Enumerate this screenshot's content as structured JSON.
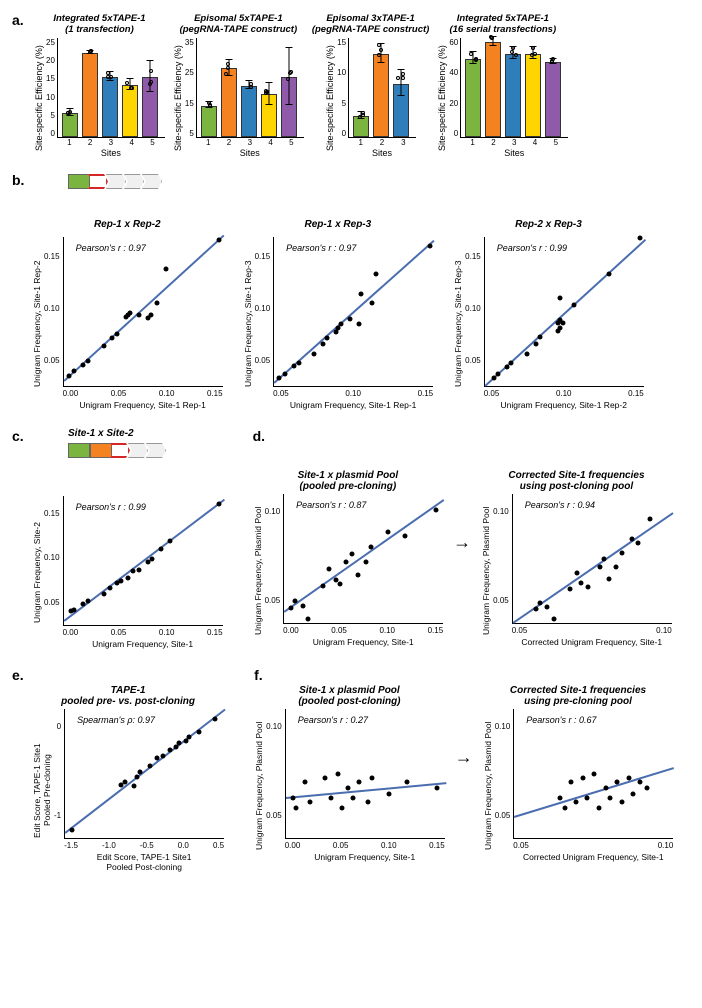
{
  "colors": {
    "green": "#7cb440",
    "orange": "#f58220",
    "blue": "#2e7ebb",
    "yellow": "#ffd500",
    "purple": "#8e5aa9",
    "fit": "#4a6db0",
    "grey": "#e6e6e6",
    "red_outline": "#d62728"
  },
  "panel_a": {
    "label": "a.",
    "y_label": "Site-specific Efficiency (%)",
    "x_label": "Sites",
    "charts": [
      {
        "title": "Integrated 5xTAPE-1\n(1 transfection)",
        "ymax": 25,
        "ytick": 5,
        "width": 130,
        "bars": [
          {
            "v": 6,
            "c": "green",
            "err": 1
          },
          {
            "v": 21,
            "c": "orange",
            "err": 0.6
          },
          {
            "v": 15,
            "c": "blue",
            "err": 1.2
          },
          {
            "v": 13,
            "c": "yellow",
            "err": 1.5
          },
          {
            "v": 15,
            "c": "purple",
            "err": 4
          }
        ]
      },
      {
        "title": "Episomal 5xTAPE-1\n(pegRNA-TAPE construct)",
        "ymax": 35,
        "ytick": 10,
        "width": 130,
        "bars": [
          {
            "v": 11,
            "c": "green",
            "err": 1.2
          },
          {
            "v": 24,
            "c": "orange",
            "err": 3
          },
          {
            "v": 18,
            "c": "blue",
            "err": 1.5
          },
          {
            "v": 15,
            "c": "yellow",
            "err": 4
          },
          {
            "v": 21,
            "c": "purple",
            "err": 10
          }
        ]
      },
      {
        "title": "Episomal 3xTAPE-1\n(pegRNA-TAPE construct)",
        "ymax": 15,
        "ytick": 5,
        "width": 100,
        "bars": [
          {
            "v": 3.2,
            "c": "green",
            "err": 0.6
          },
          {
            "v": 12.5,
            "c": "orange",
            "err": 1.5
          },
          {
            "v": 8,
            "c": "blue",
            "err": 2
          }
        ]
      },
      {
        "title": "Integrated 5xTAPE-1\n(16 serial transfections)",
        "ymax": 60,
        "ytick": 20,
        "width": 130,
        "bars": [
          {
            "v": 47,
            "c": "green",
            "err": 4
          },
          {
            "v": 57,
            "c": "orange",
            "err": 3
          },
          {
            "v": 50,
            "c": "blue",
            "err": 4
          },
          {
            "v": 50,
            "c": "yellow",
            "err": 4
          },
          {
            "v": 45,
            "c": "purple",
            "err": 2
          }
        ]
      }
    ]
  },
  "panel_b": {
    "label": "b.",
    "diagram": {
      "filled": [
        "green"
      ],
      "outlined": "grey",
      "n_chev": 4,
      "highlight_idx": 0
    },
    "charts": [
      {
        "title": "Rep-1 x Rep-2",
        "r": "Pearson's r : 0.97",
        "x": "Unigram Frequency, Site-1 Rep-1",
        "y": "Unigram Frequency, Site-1 Rep-2",
        "xlim": [
          0,
          0.18
        ],
        "ylim": [
          0,
          0.18
        ],
        "xticks": [
          "0.00",
          "0.05",
          "0.10",
          "0.15"
        ],
        "yticks": [
          "0.15",
          "0.10",
          "0.05"
        ],
        "slope": 1.0,
        "intercept": 0.005,
        "pts": [
          [
            0.006,
            0.012
          ],
          [
            0.012,
            0.018
          ],
          [
            0.022,
            0.025
          ],
          [
            0.028,
            0.03
          ],
          [
            0.045,
            0.048
          ],
          [
            0.055,
            0.058
          ],
          [
            0.06,
            0.062
          ],
          [
            0.07,
            0.083
          ],
          [
            0.072,
            0.085
          ],
          [
            0.075,
            0.088
          ],
          [
            0.085,
            0.085
          ],
          [
            0.095,
            0.082
          ],
          [
            0.098,
            0.085
          ],
          [
            0.105,
            0.1
          ],
          [
            0.115,
            0.14
          ],
          [
            0.175,
            0.175
          ]
        ]
      },
      {
        "title": "Rep-1 x Rep-3",
        "r": "Pearson's r : 0.97",
        "x": "Unigram Frequency, Site-1 Rep-1",
        "y": "Unigram Frequency, Site-1 Rep-3",
        "xlim": [
          0,
          0.18
        ],
        "ylim": [
          0,
          0.18
        ],
        "xticks": [
          "0.05",
          "0.10",
          "0.15"
        ],
        "yticks": [
          "0.15",
          "0.10",
          "0.05"
        ],
        "slope": 0.95,
        "intercept": 0.003,
        "pts": [
          [
            0.006,
            0.01
          ],
          [
            0.012,
            0.015
          ],
          [
            0.022,
            0.024
          ],
          [
            0.028,
            0.028
          ],
          [
            0.045,
            0.038
          ],
          [
            0.055,
            0.05
          ],
          [
            0.06,
            0.058
          ],
          [
            0.07,
            0.065
          ],
          [
            0.072,
            0.07
          ],
          [
            0.075,
            0.075
          ],
          [
            0.085,
            0.08
          ],
          [
            0.095,
            0.075
          ],
          [
            0.098,
            0.11
          ],
          [
            0.11,
            0.1
          ],
          [
            0.115,
            0.135
          ],
          [
            0.175,
            0.168
          ]
        ]
      },
      {
        "title": "Rep-2 x Rep-3",
        "r": "Pearson's r : 0.99",
        "x": "Unigram Frequency, Site-1 Rep-2",
        "y": "Unigram Frequency, Site-1 Rep-3",
        "xlim": [
          0,
          0.18
        ],
        "ylim": [
          0,
          0.185
        ],
        "xticks": [
          "0.05",
          "0.10",
          "0.15"
        ],
        "yticks": [
          "0.15",
          "0.10",
          "0.05"
        ],
        "slope": 1.0,
        "intercept": 0.0,
        "pts": [
          [
            0.01,
            0.01
          ],
          [
            0.015,
            0.015
          ],
          [
            0.025,
            0.024
          ],
          [
            0.03,
            0.028
          ],
          [
            0.048,
            0.04
          ],
          [
            0.058,
            0.052
          ],
          [
            0.062,
            0.06
          ],
          [
            0.082,
            0.068
          ],
          [
            0.085,
            0.072
          ],
          [
            0.088,
            0.078
          ],
          [
            0.085,
            0.082
          ],
          [
            0.082,
            0.078
          ],
          [
            0.085,
            0.108
          ],
          [
            0.1,
            0.1
          ],
          [
            0.14,
            0.138
          ],
          [
            0.175,
            0.182
          ]
        ]
      }
    ]
  },
  "panel_c": {
    "label": "c.",
    "diagram": {
      "filled": [
        "green",
        "orange"
      ],
      "outlined": "grey",
      "n_chev": 3,
      "highlight_idx": 0
    },
    "title_above": "Site-1 x Site-2",
    "chart": {
      "title": "",
      "r": "Pearson's r : 0.99",
      "x": "Unigram Frequency, Site-1",
      "y": "Unigram Frequency, Site-2",
      "xlim": [
        0,
        0.18
      ],
      "ylim": [
        0,
        0.17
      ],
      "xticks": [
        "0.00",
        "0.05",
        "0.10",
        "0.15"
      ],
      "yticks": [
        "0.15",
        "0.10",
        "0.05"
      ],
      "slope": 0.88,
      "intercept": 0.005,
      "pts": [
        [
          0.008,
          0.018
        ],
        [
          0.012,
          0.02
        ],
        [
          0.022,
          0.028
        ],
        [
          0.028,
          0.032
        ],
        [
          0.045,
          0.04
        ],
        [
          0.052,
          0.048
        ],
        [
          0.06,
          0.055
        ],
        [
          0.065,
          0.058
        ],
        [
          0.072,
          0.062
        ],
        [
          0.078,
          0.07
        ],
        [
          0.085,
          0.072
        ],
        [
          0.095,
          0.082
        ],
        [
          0.1,
          0.086
        ],
        [
          0.11,
          0.1
        ],
        [
          0.12,
          0.11
        ],
        [
          0.175,
          0.158
        ]
      ]
    }
  },
  "panel_d": {
    "label": "d.",
    "charts": [
      {
        "title": "Site-1 x plasmid Pool\n(pooled pre-cloning)",
        "r": "Pearson's r : 0.87",
        "x": "Unigram Frequency, Site-1",
        "y": "Unigram Frequency, Plasmid Pool",
        "xlim": [
          0,
          0.185
        ],
        "ylim": [
          0.04,
          0.1
        ],
        "xticks": [
          "0.00",
          "0.05",
          "0.10",
          "0.15"
        ],
        "yticks": [
          "0.10",
          "0.05"
        ],
        "slope": 0.28,
        "intercept": 0.045,
        "pts": [
          [
            0.008,
            0.047
          ],
          [
            0.012,
            0.05
          ],
          [
            0.022,
            0.048
          ],
          [
            0.028,
            0.042
          ],
          [
            0.045,
            0.057
          ],
          [
            0.052,
            0.065
          ],
          [
            0.06,
            0.06
          ],
          [
            0.065,
            0.058
          ],
          [
            0.072,
            0.068
          ],
          [
            0.078,
            0.072
          ],
          [
            0.085,
            0.062
          ],
          [
            0.095,
            0.068
          ],
          [
            0.1,
            0.075
          ],
          [
            0.12,
            0.082
          ],
          [
            0.14,
            0.08
          ],
          [
            0.175,
            0.092
          ]
        ]
      },
      {
        "title": "Corrected Site-1 frequencies\nusing post-cloning pool",
        "r": "Pearson's r : 0.94",
        "x": "Corrected Unigram Frequency, Site-1",
        "y": "Unigram Frequency, Plasmid Pool",
        "xlim": [
          0.03,
          0.1
        ],
        "ylim": [
          0.04,
          0.105
        ],
        "xticks": [
          "0.05",
          "0.10"
        ],
        "yticks": [
          "0.10",
          "0.05"
        ],
        "slope": 0.85,
        "intercept": 0.01,
        "pts": [
          [
            0.04,
            0.047
          ],
          [
            0.042,
            0.05
          ],
          [
            0.045,
            0.048
          ],
          [
            0.048,
            0.042
          ],
          [
            0.055,
            0.057
          ],
          [
            0.058,
            0.065
          ],
          [
            0.06,
            0.06
          ],
          [
            0.063,
            0.058
          ],
          [
            0.068,
            0.068
          ],
          [
            0.07,
            0.072
          ],
          [
            0.072,
            0.062
          ],
          [
            0.075,
            0.068
          ],
          [
            0.078,
            0.075
          ],
          [
            0.082,
            0.082
          ],
          [
            0.085,
            0.08
          ],
          [
            0.09,
            0.092
          ]
        ]
      }
    ]
  },
  "panel_e": {
    "label": "e.",
    "chart": {
      "title": "TAPE-1\npooled pre- vs. post-cloning",
      "r": "Spearman's ρ: 0.97",
      "x": "Edit Score, TAPE-1 Site1\nPooled Post-cloning",
      "y": "Edit Score, TAPE-1 Site1\nPooled Pre-cloning",
      "xlim": [
        -1.6,
        0.85
      ],
      "ylim": [
        -1.6,
        0.85
      ],
      "xticks": [
        "-1.5",
        "-1.0",
        "-0.5",
        "0.0",
        "0.5"
      ],
      "yticks": [
        "0",
        "-1"
      ],
      "slope": 0.95,
      "intercept": 0.0,
      "pts": [
        [
          -1.5,
          -1.45
        ],
        [
          -0.75,
          -0.6
        ],
        [
          -0.68,
          -0.55
        ],
        [
          -0.55,
          -0.62
        ],
        [
          -0.5,
          -0.45
        ],
        [
          -0.45,
          -0.35
        ],
        [
          -0.3,
          -0.25
        ],
        [
          -0.2,
          -0.1
        ],
        [
          -0.1,
          -0.05
        ],
        [
          0.0,
          0.05
        ],
        [
          0.1,
          0.12
        ],
        [
          0.15,
          0.2
        ],
        [
          0.25,
          0.22
        ],
        [
          0.3,
          0.3
        ],
        [
          0.45,
          0.4
        ],
        [
          0.7,
          0.65
        ]
      ]
    }
  },
  "panel_f": {
    "label": "f.",
    "charts": [
      {
        "title": "Site-1 x plasmid Pool\n(pooled post-cloning)",
        "r": "Pearson's r : 0.27",
        "x": "Unigram Frequency, Site-1",
        "y": "Unigram Frequency, Plasmid Pool",
        "xlim": [
          0,
          0.185
        ],
        "ylim": [
          0.04,
          0.105
        ],
        "xticks": [
          "0.00",
          "0.05",
          "0.10",
          "0.15"
        ],
        "yticks": [
          "0.10",
          "0.05"
        ],
        "slope": 0.04,
        "intercept": 0.06,
        "pts": [
          [
            0.008,
            0.06
          ],
          [
            0.012,
            0.055
          ],
          [
            0.022,
            0.068
          ],
          [
            0.028,
            0.058
          ],
          [
            0.045,
            0.07
          ],
          [
            0.052,
            0.06
          ],
          [
            0.06,
            0.072
          ],
          [
            0.065,
            0.055
          ],
          [
            0.072,
            0.065
          ],
          [
            0.078,
            0.06
          ],
          [
            0.085,
            0.068
          ],
          [
            0.095,
            0.058
          ],
          [
            0.1,
            0.07
          ],
          [
            0.12,
            0.062
          ],
          [
            0.14,
            0.068
          ],
          [
            0.175,
            0.065
          ]
        ]
      },
      {
        "title": "Corrected Site-1 frequencies\nusing pre-cloning pool",
        "r": "Pearson's r : 0.67",
        "x": "Corrected Unigram Frequency, Site-1",
        "y": "Unigram Frequency, Plasmid Pool",
        "xlim": [
          0.03,
          0.1
        ],
        "ylim": [
          0.04,
          0.105
        ],
        "xticks": [
          "0.05",
          "0.10"
        ],
        "yticks": [
          "0.10",
          "0.05"
        ],
        "slope": 0.35,
        "intercept": 0.04,
        "pts": [
          [
            0.05,
            0.06
          ],
          [
            0.052,
            0.055
          ],
          [
            0.055,
            0.068
          ],
          [
            0.057,
            0.058
          ],
          [
            0.06,
            0.07
          ],
          [
            0.062,
            0.06
          ],
          [
            0.065,
            0.072
          ],
          [
            0.067,
            0.055
          ],
          [
            0.07,
            0.065
          ],
          [
            0.072,
            0.06
          ],
          [
            0.075,
            0.068
          ],
          [
            0.077,
            0.058
          ],
          [
            0.08,
            0.07
          ],
          [
            0.082,
            0.062
          ],
          [
            0.085,
            0.068
          ],
          [
            0.088,
            0.065
          ]
        ]
      }
    ]
  },
  "scatter_size": {
    "w": 160,
    "h": 150
  },
  "scatter_size_sm": {
    "w": 160,
    "h": 130
  }
}
